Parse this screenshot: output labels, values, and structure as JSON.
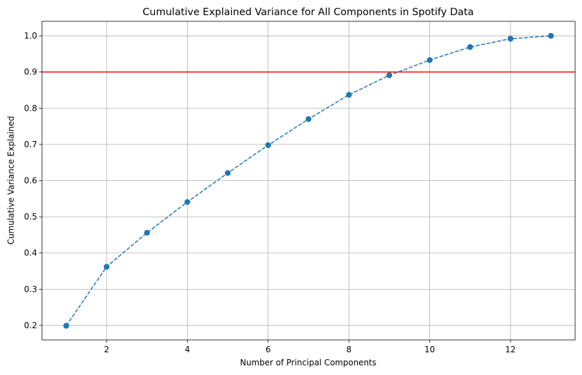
{
  "chart_data": {
    "type": "line",
    "title": "Cumulative Explained Variance for All Components in Spotify Data",
    "xlabel": "Number of Principal Components",
    "ylabel": "Cumulative Variance Explained",
    "xlim": [
      0.4,
      13.6
    ],
    "ylim": [
      0.16,
      1.04
    ],
    "xticks": [
      2,
      4,
      6,
      8,
      10,
      12
    ],
    "yticks": [
      0.2,
      0.3,
      0.4,
      0.5,
      0.6,
      0.7,
      0.8,
      0.9,
      1.0
    ],
    "ytick_labels": [
      "0.2",
      "0.3",
      "0.4",
      "0.5",
      "0.6",
      "0.7",
      "0.8",
      "0.9",
      "1.0"
    ],
    "grid": true,
    "series": [
      {
        "x": [
          1,
          2,
          3,
          4,
          5,
          6,
          7,
          8,
          9,
          10,
          11,
          12,
          13
        ],
        "values": [
          0.199,
          0.362,
          0.456,
          0.541,
          0.621,
          0.698,
          0.77,
          0.837,
          0.891,
          0.933,
          0.969,
          0.992,
          1.0
        ],
        "color": "#1f77b4",
        "line_style": "dashed",
        "marker": "circle"
      }
    ],
    "reference_line": {
      "axis": "y",
      "value": 0.9,
      "color": "#ff0000"
    }
  }
}
